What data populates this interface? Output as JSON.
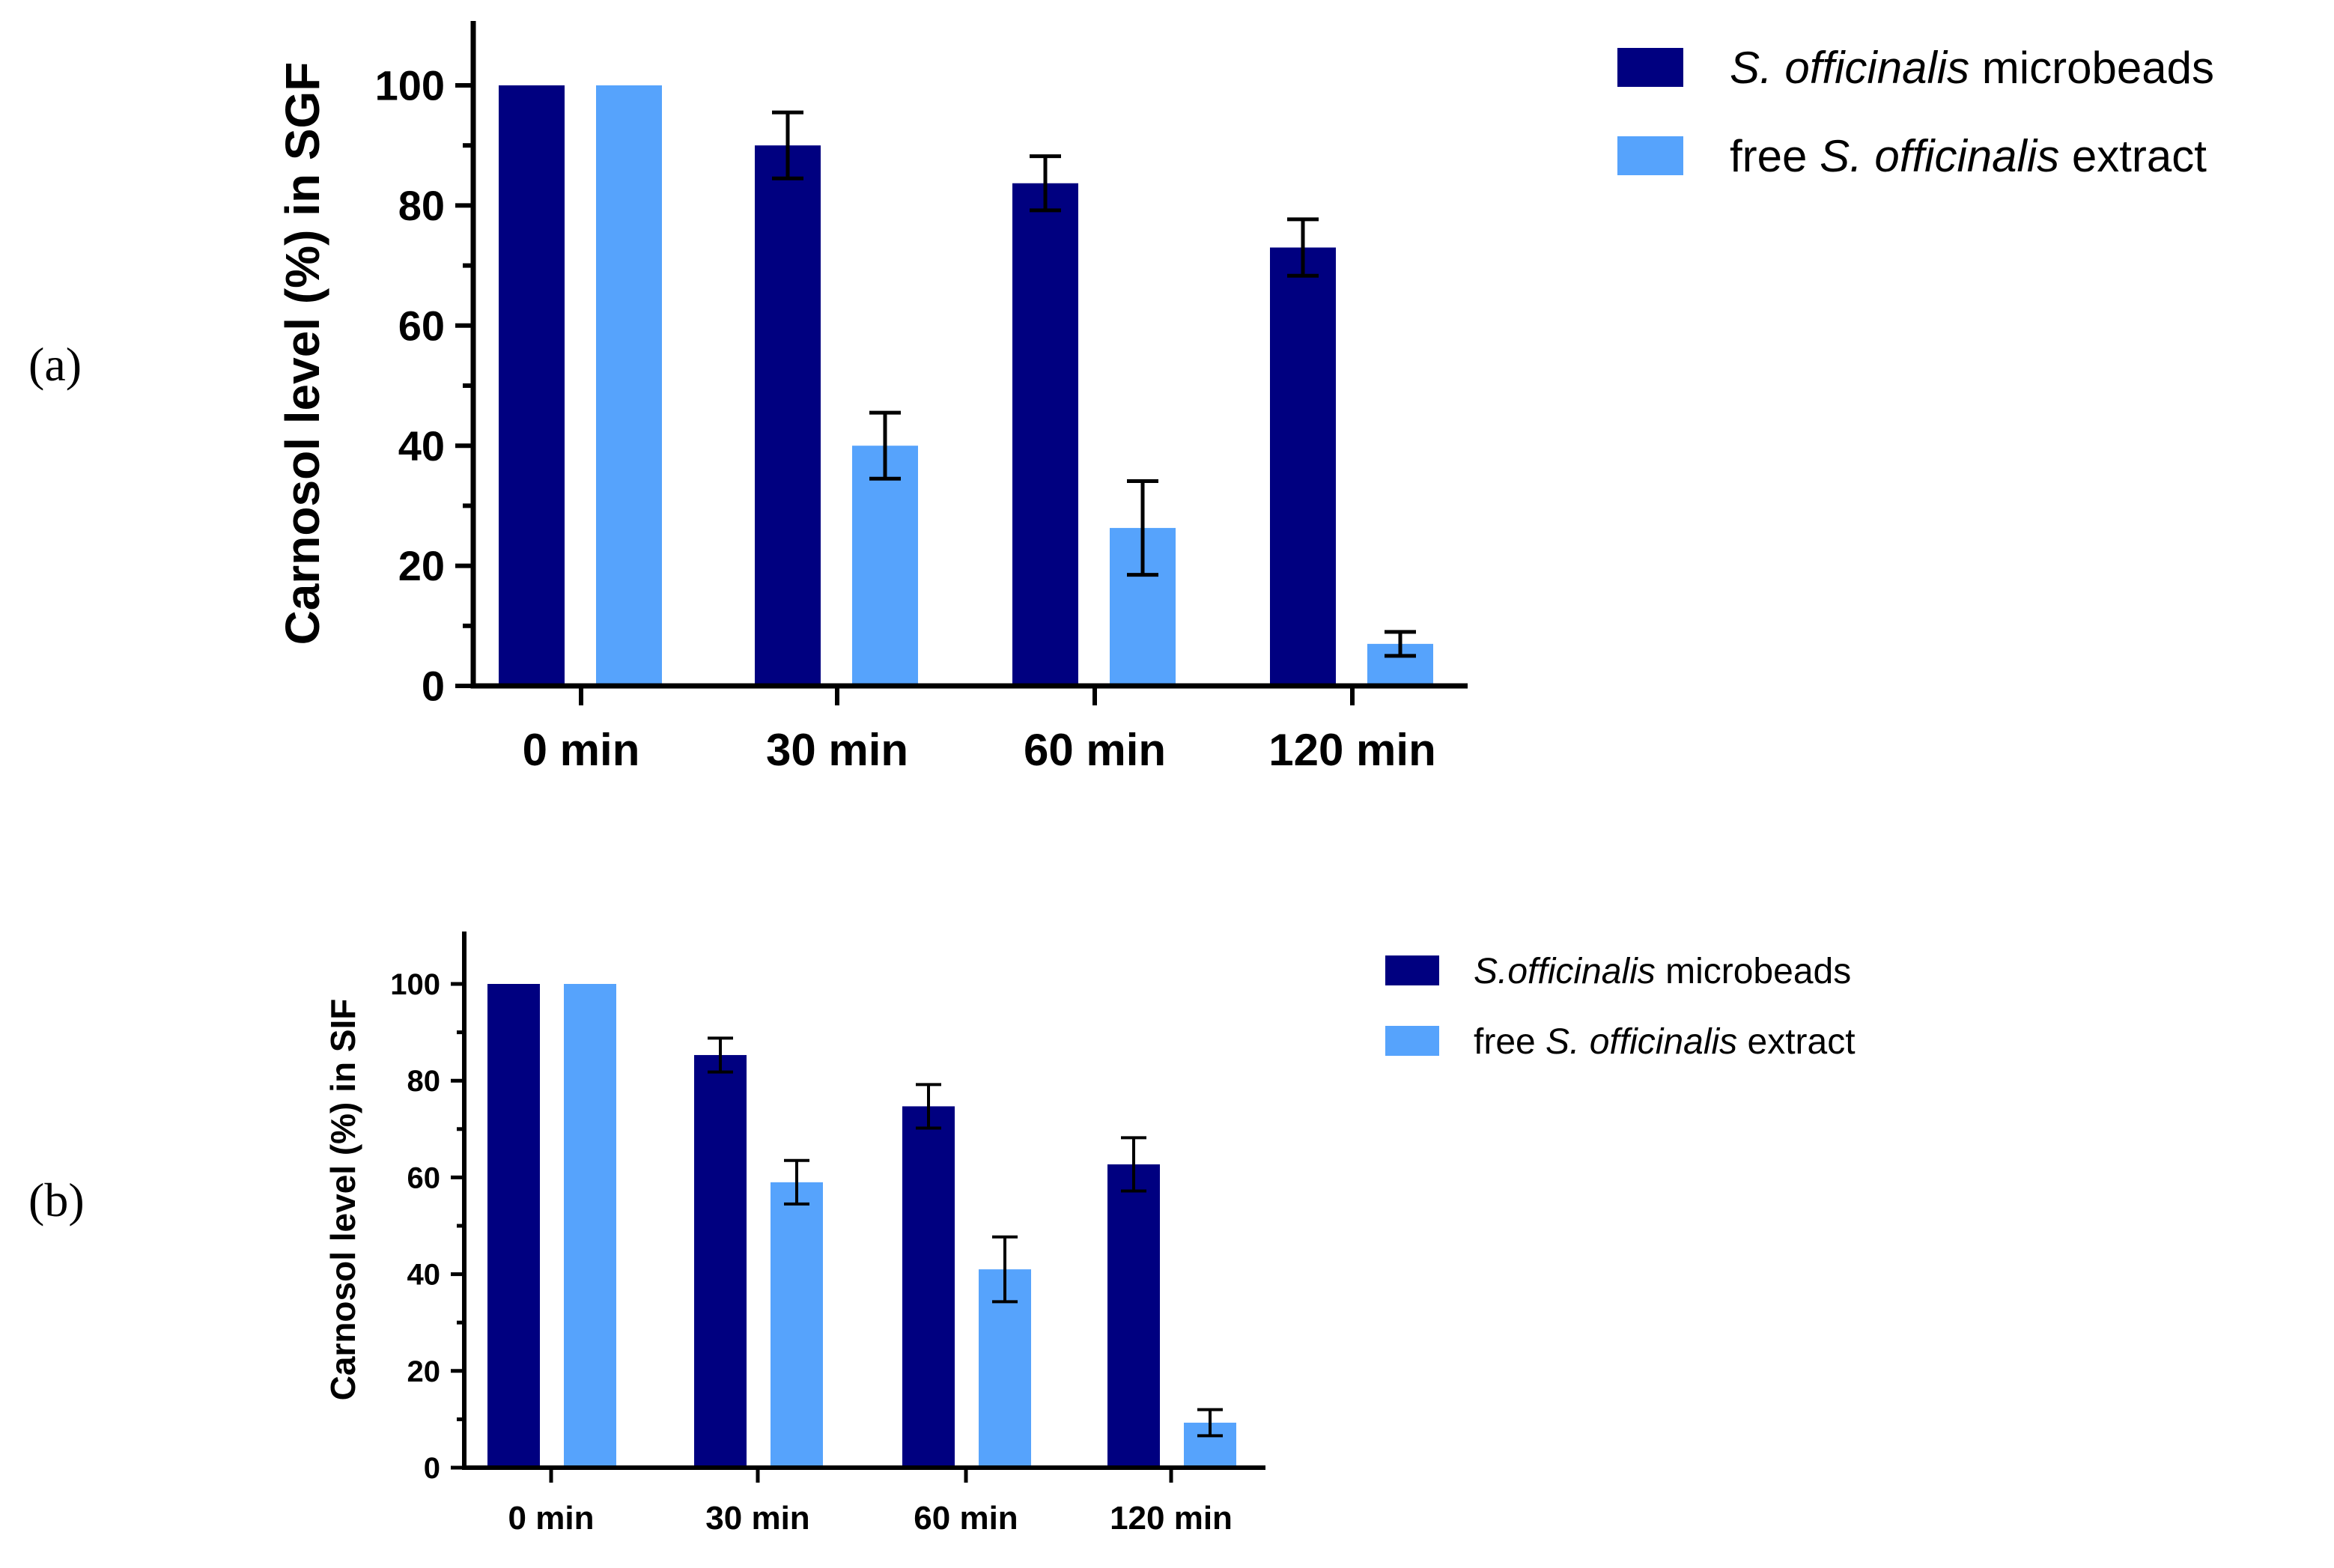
{
  "colors": {
    "microbeads": "#000080",
    "free_extract": "#56A3FC",
    "axis": "#000000"
  },
  "chart_data": [
    {
      "type": "bar",
      "panel_label": "(a)",
      "ylabel": "Carnosol level (%) in SGF",
      "xlabel": "",
      "categories": [
        "0 min",
        "30 min",
        "60 min",
        "120 min"
      ],
      "ylim": [
        0,
        110
      ],
      "yticks": [
        "0",
        "20",
        "40",
        "60",
        "80",
        "100"
      ],
      "legend_position": "top-right",
      "legend": [
        {
          "italic": "S. officinalis",
          "text": " microbeads"
        },
        {
          "prefix": "free ",
          "italic": "S. officinalis",
          "text": " extract"
        }
      ],
      "series": [
        {
          "name": "S. officinalis microbeads",
          "values": [
            100,
            90,
            83.7,
            73
          ],
          "errors": [
            0,
            5.5,
            4.5,
            4.7
          ]
        },
        {
          "name": "free S. officinalis extract",
          "values": [
            100,
            40,
            26.3,
            7
          ],
          "errors": [
            0,
            5.5,
            7.8,
            2
          ]
        }
      ]
    },
    {
      "type": "bar",
      "panel_label": "(b)",
      "ylabel": "Carnosol level (%) in SIF",
      "xlabel": "",
      "categories": [
        "0 min",
        "30 min",
        "60 min",
        "120 min"
      ],
      "ylim": [
        0,
        110
      ],
      "yticks": [
        "0",
        "20",
        "40",
        "60",
        "80",
        "100"
      ],
      "legend_position": "top-right",
      "legend": [
        {
          "italic": "S.officinalis",
          "text": " microbeads"
        },
        {
          "prefix": "free ",
          "italic": "S. officinalis",
          "text": " extract"
        }
      ],
      "series": [
        {
          "name": "S.officinalis microbeads",
          "values": [
            100,
            85.3,
            74.7,
            62.7
          ],
          "errors": [
            0,
            3.5,
            4.5,
            5.5
          ]
        },
        {
          "name": "free S. officinalis extract",
          "values": [
            100,
            59,
            41,
            9.3
          ],
          "errors": [
            0,
            4.5,
            6.7,
            2.7
          ]
        }
      ]
    }
  ]
}
